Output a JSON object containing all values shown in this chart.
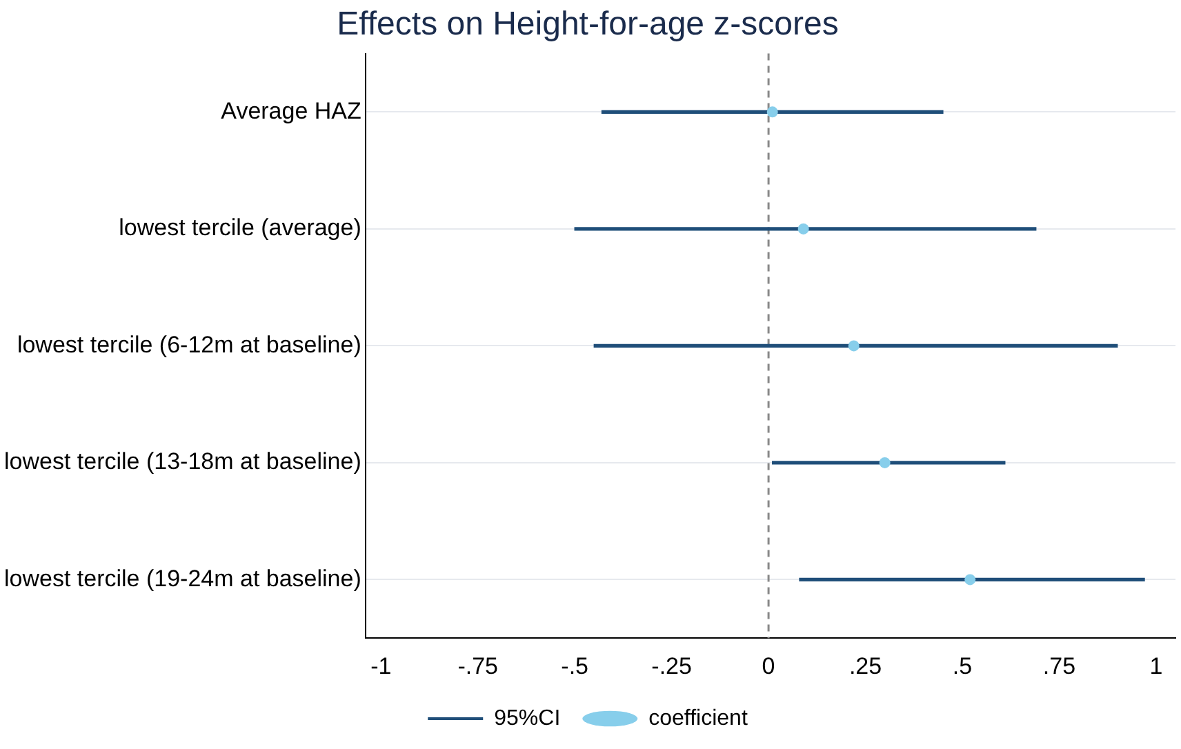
{
  "chart_data": {
    "type": "scatter",
    "orientation": "horizontal",
    "title": "Effects on Height-for-age z-scores",
    "categories": [
      "Average HAZ",
      "lowest tercile (average)",
      "lowest tercile (6-12m at baseline)",
      "lowest tercile (13-18m at baseline)",
      "lowest tercile (19-24m at baseline)"
    ],
    "series": [
      {
        "name": "95%CI",
        "type": "bar",
        "color": "#1f4e79",
        "base": [
          -0.43,
          -0.5,
          -0.45,
          0.01,
          0.08
        ],
        "values": [
          0.88,
          1.19,
          1.35,
          0.6,
          0.89
        ]
      },
      {
        "name": "coefficient",
        "type": "scatter",
        "color": "#87ceeb",
        "values": [
          0.01,
          0.09,
          0.22,
          0.3,
          0.52
        ]
      }
    ],
    "xlim": [
      -1.04,
      1.05
    ],
    "xticks": [
      -1,
      {
        "value": -0.75,
        "label": "-.75"
      },
      {
        "value": -0.5,
        "label": "-.5"
      },
      {
        "value": -0.25,
        "label": "-.25"
      },
      0,
      {
        "value": 0.25,
        "label": ".25"
      },
      {
        "value": 0.5,
        "label": ".5"
      },
      {
        "value": 0.75,
        "label": ".75"
      },
      1
    ],
    "ref_lines": [
      {
        "axis": "x",
        "value": 0,
        "color": "#888888",
        "line_style": "dashed"
      }
    ],
    "grid": "y",
    "legend": "bottom",
    "marker": "circle"
  }
}
